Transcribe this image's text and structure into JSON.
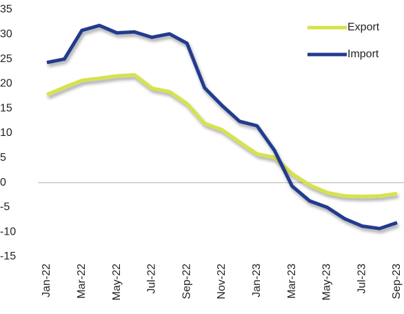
{
  "chart_data": {
    "type": "line",
    "categories": [
      "Jan-22",
      null,
      "Mar-22",
      null,
      "May-22",
      null,
      "Jul-22",
      null,
      "Sep-22",
      null,
      "Nov-22",
      null,
      "Jan-23",
      null,
      "Mar-23",
      null,
      "May-23",
      null,
      "Jul-23",
      null,
      "Sep-23"
    ],
    "series": [
      {
        "name": "Export",
        "color": "#d6e34a",
        "values": [
          17.8,
          19.3,
          20.7,
          21.1,
          21.6,
          21.8,
          19.1,
          18.4,
          16.0,
          12.0,
          10.7,
          8.2,
          5.8,
          5.1,
          1.8,
          -0.5,
          -2.0,
          -2.7,
          -2.8,
          -2.7,
          -2.2
        ]
      },
      {
        "name": "Import",
        "color": "#233a8e",
        "values": [
          24.3,
          25.0,
          30.8,
          31.8,
          30.3,
          30.5,
          29.4,
          30.1,
          28.2,
          19.2,
          15.6,
          12.4,
          11.5,
          6.5,
          -0.7,
          -3.7,
          -5.0,
          -7.3,
          -8.8,
          -9.3,
          -8.1
        ]
      }
    ],
    "ylim": [
      -15,
      35
    ],
    "yticks": [
      -15,
      -10,
      -5,
      0,
      5,
      10,
      15,
      20,
      25,
      30,
      35
    ],
    "zero_line": true,
    "legend": "top-right"
  }
}
